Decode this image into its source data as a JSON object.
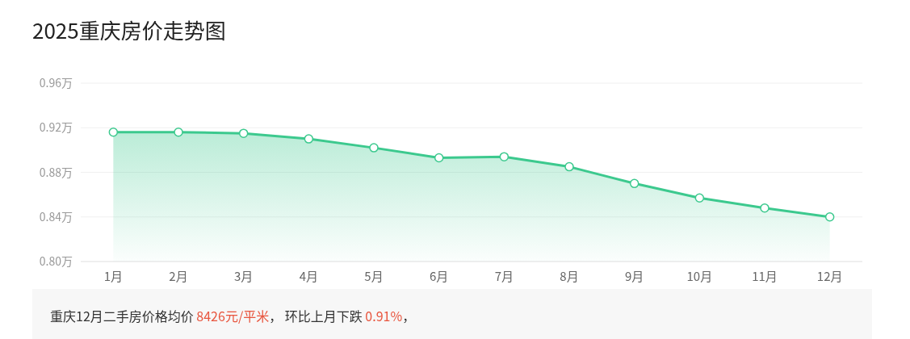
{
  "chart_data": {
    "type": "area",
    "title": "2025重庆房价走势图",
    "categories": [
      "1月",
      "2月",
      "3月",
      "4月",
      "5月",
      "6月",
      "7月",
      "8月",
      "9月",
      "10月",
      "11月",
      "12月"
    ],
    "series": [
      {
        "color": "#3cc98e",
        "values": [
          0.916,
          0.916,
          0.915,
          0.91,
          0.902,
          0.893,
          0.894,
          0.885,
          0.87,
          0.857,
          0.848,
          0.84
        ]
      }
    ],
    "ylim": [
      0.8,
      0.96
    ],
    "yticks": [
      {
        "value": 0.8,
        "label": "0.80万"
      },
      {
        "value": 0.84,
        "label": "0.84万"
      },
      {
        "value": 0.88,
        "label": "0.88万"
      },
      {
        "value": 0.92,
        "label": "0.92万"
      },
      {
        "value": 0.96,
        "label": "0.96万"
      }
    ],
    "grid": "y",
    "marker": "circle",
    "annotations": [
      "重庆12月二手房价格均价 ",
      "8426元/平米",
      "， 环比上月下跌 ",
      "0.91%",
      "，"
    ]
  }
}
